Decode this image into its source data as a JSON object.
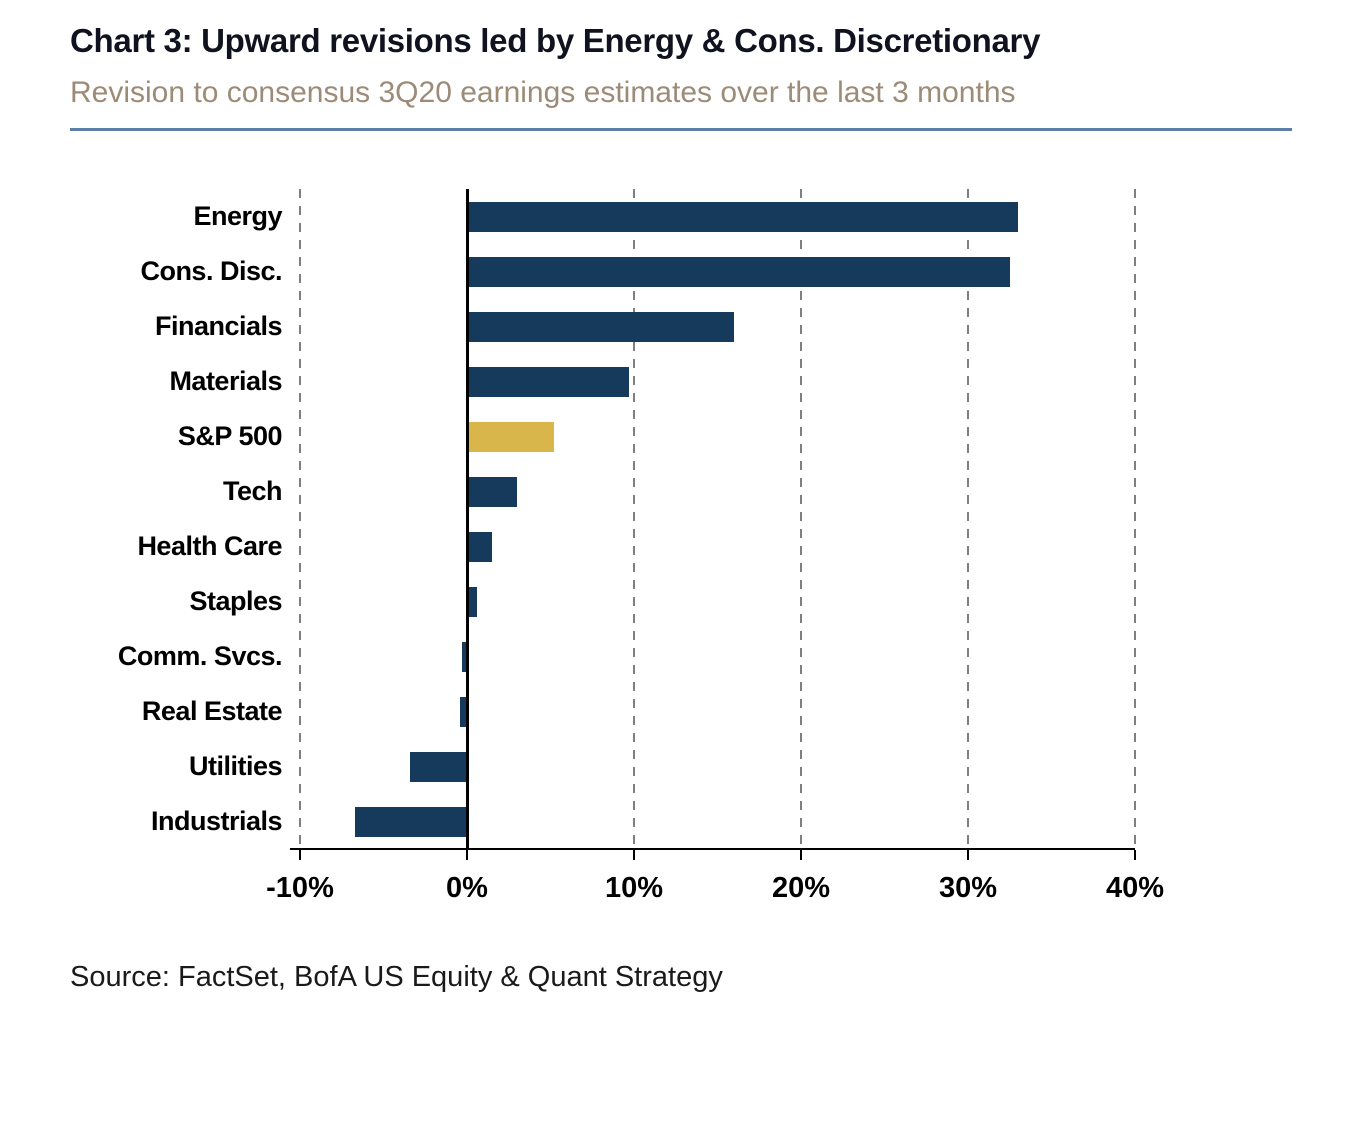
{
  "header": {
    "title": "Chart 3: Upward revisions led by Energy & Cons. Discretionary",
    "subtitle": "Revision to consensus 3Q20 earnings estimates over the last 3 months"
  },
  "source": "Source: FactSet, BofA US Equity & Quant Strategy",
  "colors": {
    "bar": "#153a5b",
    "highlight": "#d9b64b",
    "rule": "#5b7fa6",
    "grid": "#7f7f7f",
    "axis": "#000000"
  },
  "chart_data": {
    "type": "bar",
    "orientation": "horizontal",
    "title": "Chart 3: Upward revisions led by Energy & Cons. Discretionary",
    "subtitle": "Revision to consensus 3Q20 earnings estimates over the last 3 months",
    "xlabel": "",
    "ylabel": "",
    "categories": [
      "Energy",
      "Cons. Disc.",
      "Financials",
      "Materials",
      "S&P 500",
      "Tech",
      "Health Care",
      "Staples",
      "Comm. Svcs.",
      "Real Estate",
      "Utilities",
      "Industrials"
    ],
    "values": [
      33,
      32.5,
      16,
      9.7,
      5.2,
      3,
      1.5,
      0.6,
      -0.3,
      -0.4,
      -3.4,
      -6.7
    ],
    "unit": "%",
    "highlight_category": "S&P 500",
    "xlim": [
      -10,
      40
    ],
    "xticks": [
      -10,
      0,
      10,
      20,
      30,
      40
    ],
    "xtick_labels": [
      "-10%",
      "0%",
      "10%",
      "20%",
      "30%",
      "40%"
    ],
    "grid": "dashed-vertical",
    "legend": "none"
  }
}
